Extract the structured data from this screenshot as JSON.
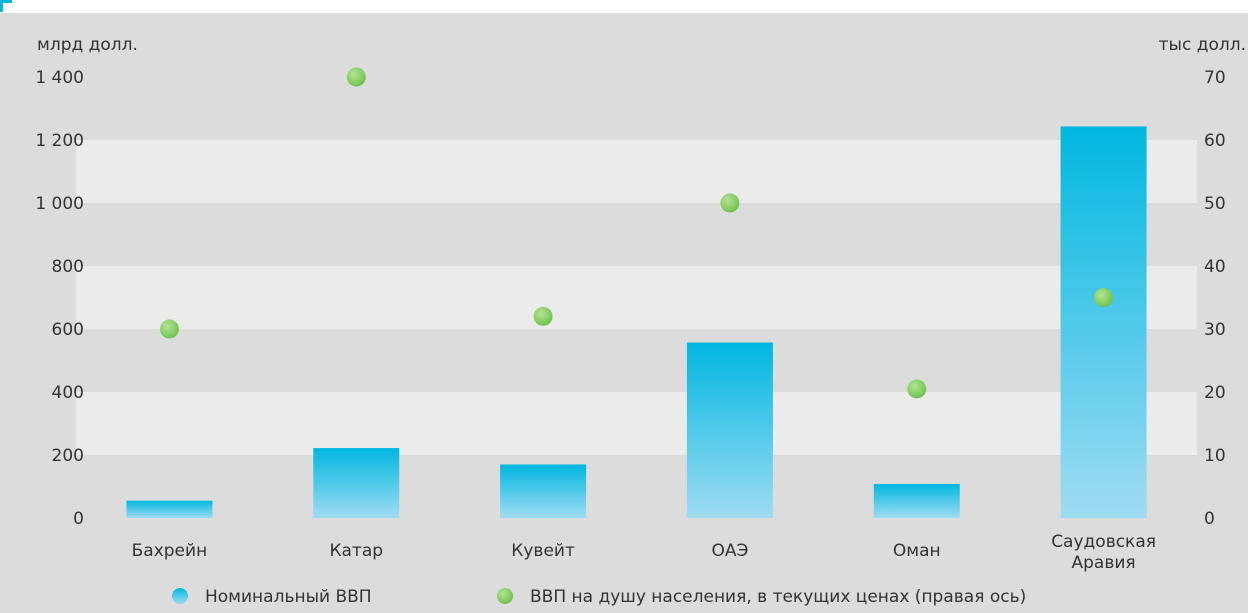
{
  "chart_data": {
    "type": "bar",
    "categories": [
      "Бахрейн",
      "Катар",
      "Кувейт",
      "ОАЭ",
      "Оман",
      "Саудовская Аравия"
    ],
    "category_lines": [
      [
        "Бахрейн"
      ],
      [
        "Катар"
      ],
      [
        "Кувейт"
      ],
      [
        "ОАЭ"
      ],
      [
        "Оман"
      ],
      [
        "Саудовская",
        "Аравия"
      ]
    ],
    "series": [
      {
        "name": "Номинальный ВВП",
        "kind": "bar",
        "axis": "left",
        "values": [
          55,
          222,
          170,
          557,
          108,
          1243
        ]
      },
      {
        "name": "ВВП на душу населения, в текущих ценах (правая ось)",
        "kind": "scatter",
        "axis": "right",
        "values": [
          30,
          70,
          32,
          50,
          20.5,
          35
        ]
      }
    ],
    "ylabel_left": "млрд долл.",
    "ylabel_right": "тыс долл.",
    "ylim_left": [
      0,
      1400
    ],
    "ylim_right": [
      0,
      70
    ],
    "yticks_left": [
      "0",
      "200",
      "400",
      "600",
      "800",
      "1 000",
      "1 200",
      "1 400"
    ],
    "yticks_right": [
      "0",
      "10",
      "20",
      "30",
      "40",
      "50",
      "60",
      "70"
    ],
    "grid": "alternating horizontal bands",
    "legend_position": "bottom",
    "colors": {
      "background": "#dcdcdc",
      "band_light": "#ebebeb",
      "bar_top": "#00b7e0",
      "bar_bottom": "#9fdcf2",
      "point": "#6cc04a",
      "point_highlight": "#b4e495",
      "accent_corner": "#00b7e0",
      "text": "#333333"
    }
  }
}
